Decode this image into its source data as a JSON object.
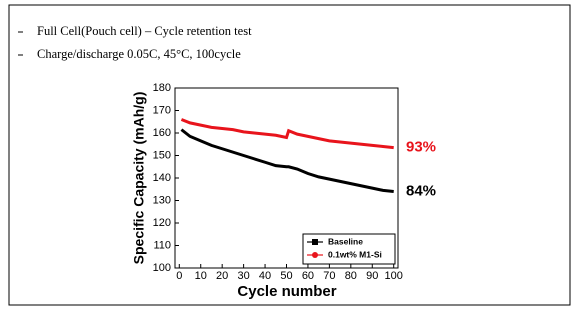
{
  "bullets": [
    "Full Cell(Pouch cell) – Cycle retention test",
    "Charge/discharge 0.05C,  45°C, 100cycle"
  ],
  "chart_data": {
    "type": "line",
    "x_label": "Cycle number",
    "y_label": "Specific Capacity (mAh/g)",
    "x": [
      1,
      5,
      10,
      15,
      20,
      25,
      30,
      35,
      40,
      45,
      50,
      51,
      55,
      60,
      65,
      70,
      75,
      80,
      85,
      90,
      95,
      100
    ],
    "series": [
      {
        "name": "Baseline",
        "color": "#000000",
        "marker": "square",
        "end_label": "84%",
        "values": [
          161.5,
          158.5,
          156.5,
          154.5,
          153,
          151.5,
          150,
          148.5,
          147,
          145.5,
          145,
          145,
          144,
          142,
          140.5,
          139.5,
          138.5,
          137.5,
          136.5,
          135.5,
          134.5,
          134
        ]
      },
      {
        "name": "0.1wt% M1-Si",
        "color": "#e8141c",
        "marker": "circle",
        "end_label": "93%",
        "values": [
          166,
          164.5,
          163.5,
          162.5,
          162,
          161.5,
          160.5,
          160,
          159.5,
          159,
          158,
          161,
          159.5,
          158.5,
          157.5,
          156.5,
          156,
          155.5,
          155,
          154.5,
          154,
          153.5
        ]
      }
    ],
    "xlim": [
      -2,
      102
    ],
    "xticks": [
      0,
      10,
      20,
      30,
      40,
      50,
      60,
      70,
      80,
      90,
      100
    ],
    "ylim": [
      100,
      180
    ],
    "yticks": [
      100,
      110,
      120,
      130,
      140,
      150,
      160,
      170,
      180
    ],
    "legend": "lower right"
  }
}
